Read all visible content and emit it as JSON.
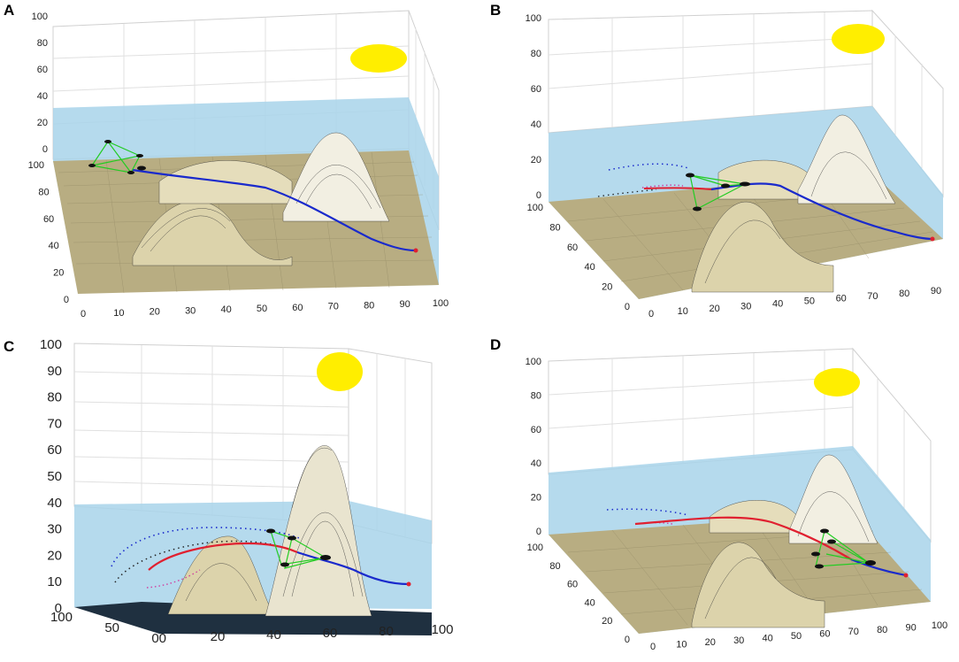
{
  "figure": {
    "panels": [
      {
        "id": "A",
        "label": "A",
        "z_ticks": [
          "100",
          "80",
          "60",
          "40",
          "20",
          "0"
        ],
        "y_ticks": [
          "100",
          "80",
          "60",
          "40",
          "20",
          "0"
        ],
        "x_ticks": [
          "0",
          "10",
          "20",
          "30",
          "40",
          "50",
          "60",
          "70",
          "80",
          "90",
          "100"
        ]
      },
      {
        "id": "B",
        "label": "B",
        "z_ticks": [
          "100",
          "80",
          "60",
          "40",
          "20",
          "0"
        ],
        "y_ticks": [
          "100",
          "80",
          "60",
          "40",
          "20",
          "0"
        ],
        "x_ticks": [
          "0",
          "10",
          "20",
          "30",
          "40",
          "50",
          "60",
          "70",
          "80",
          "90"
        ]
      },
      {
        "id": "C",
        "label": "C",
        "z_ticks": [
          "100",
          "90",
          "80",
          "70",
          "60",
          "50",
          "40",
          "30",
          "20",
          "10",
          "0"
        ],
        "y_ticks": [
          "100",
          "50",
          "00"
        ],
        "x_ticks": [
          "20",
          "40",
          "60",
          "80",
          "100"
        ]
      },
      {
        "id": "D",
        "label": "D",
        "z_ticks": [
          "100",
          "80",
          "60",
          "40",
          "20",
          "0"
        ],
        "y_ticks": [
          "100",
          "80",
          "60",
          "40",
          "20",
          "0"
        ],
        "x_ticks": [
          "0",
          "10",
          "20",
          "30",
          "40",
          "50",
          "60",
          "70",
          "80",
          "90",
          "100"
        ]
      }
    ],
    "colors": {
      "water": "#a8d4ea",
      "terrain": "#d8cfa4",
      "terrain_dark": "#7a7254",
      "sun": "#ffee00",
      "path_blue": "#1a2acc",
      "path_red": "#e02030",
      "link_green": "#22cc22",
      "agent": "#111111",
      "grid": "#e0e0e0"
    },
    "icons": [
      "sun-icon",
      "drone-icon",
      "target-marker-icon"
    ]
  }
}
